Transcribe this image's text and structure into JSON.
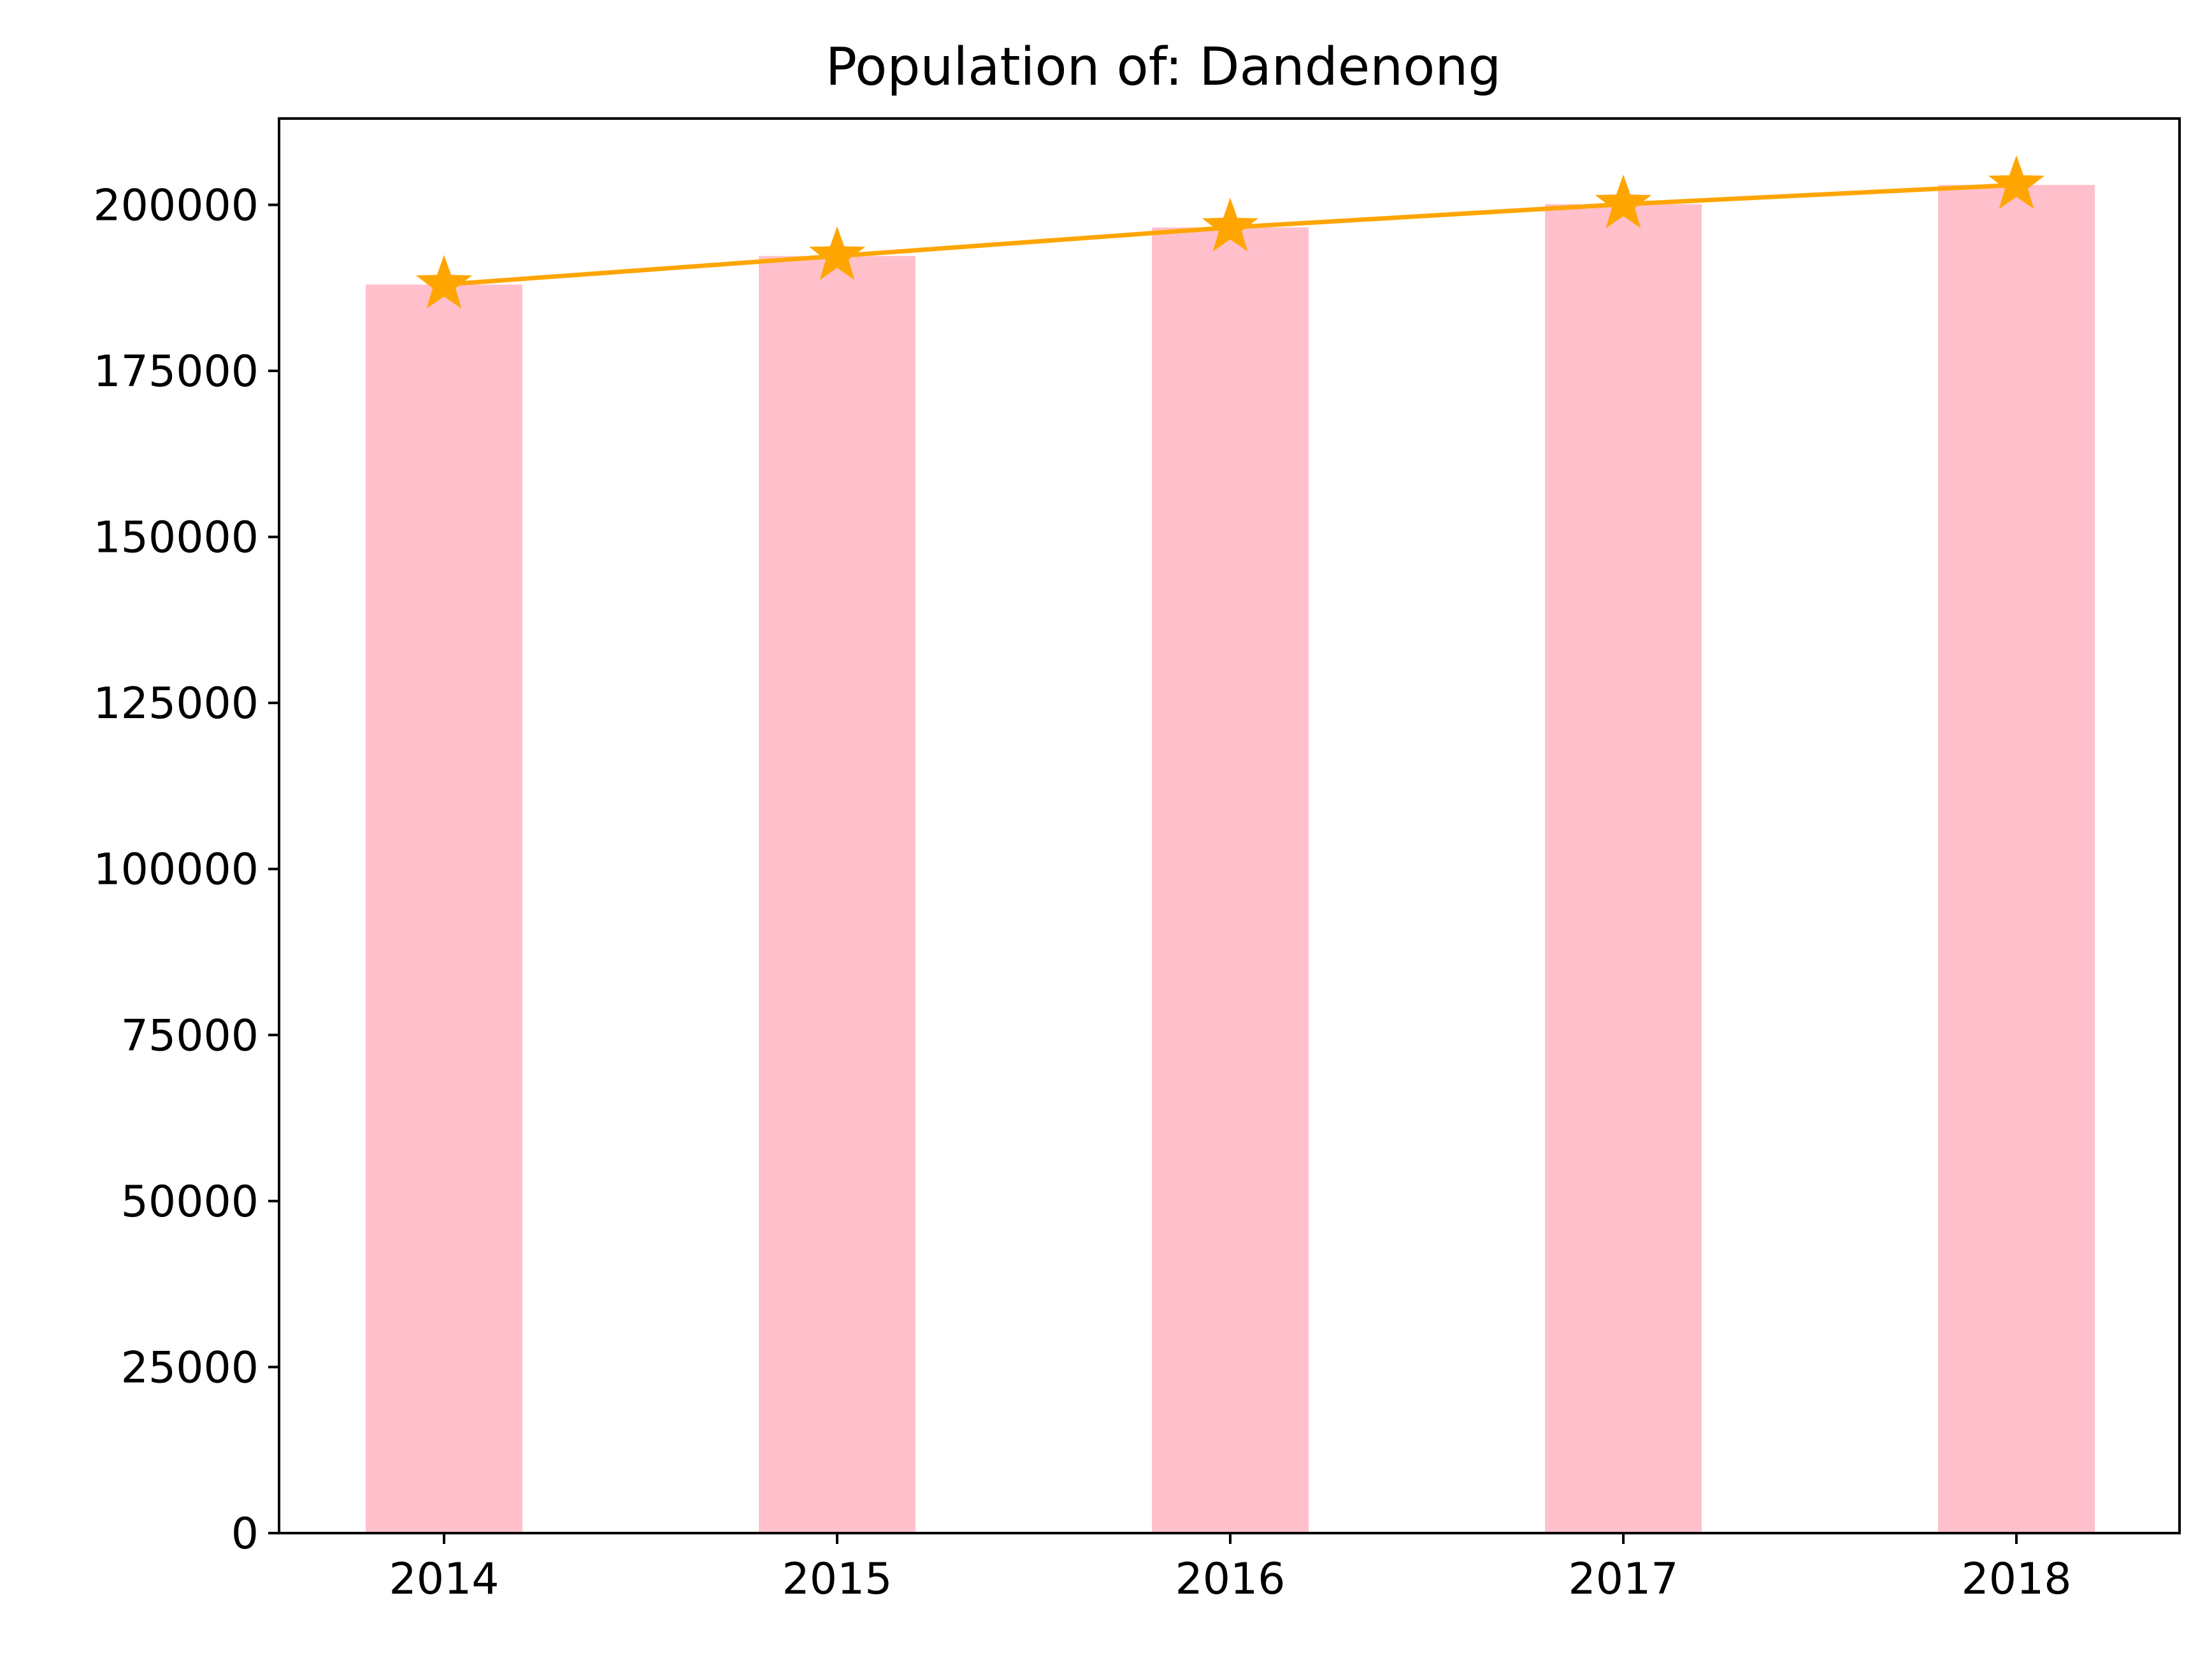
{
  "chart_data": {
    "type": "bar",
    "title": "Population of: Dandenong",
    "xlabel": "",
    "ylabel": "",
    "categories": [
      "2014",
      "2015",
      "2016",
      "2017",
      "2018"
    ],
    "values": [
      188000,
      192300,
      196600,
      200100,
      203000
    ],
    "ylim": [
      0,
      213000
    ],
    "yticks": [
      0,
      25000,
      50000,
      75000,
      100000,
      125000,
      150000,
      175000,
      200000
    ],
    "ytick_labels": [
      "0",
      "25000",
      "50000",
      "75000",
      "100000",
      "125000",
      "150000",
      "175000",
      "200000"
    ],
    "bar_color": "#ffc0cb",
    "overlay_line": {
      "type": "line",
      "marker": "star",
      "color": "#ffa500",
      "values": [
        188000,
        192300,
        196600,
        200100,
        203000
      ]
    },
    "grid": false,
    "legend": "none"
  }
}
